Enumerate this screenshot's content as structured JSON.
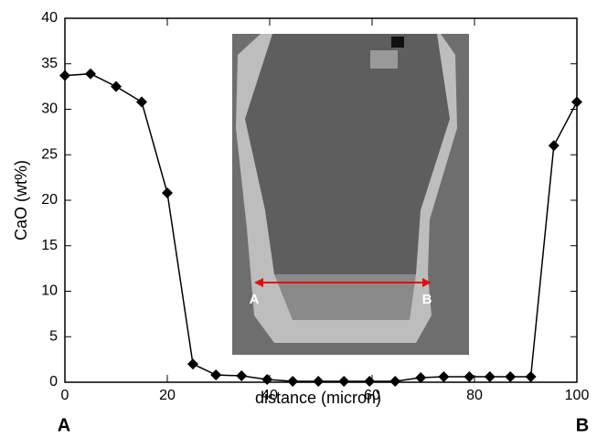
{
  "chart_data": {
    "type": "line",
    "x_label": "distance (micron)",
    "y_label": "CaO (wt%)",
    "x": [
      0,
      5,
      10,
      15,
      20,
      25,
      29.5,
      34.5,
      39.5,
      44.5,
      49.5,
      54.5,
      59.5,
      64.5,
      69.5,
      74,
      79,
      83,
      87,
      91,
      95.5,
      100
    ],
    "series": [
      {
        "color": "#000000",
        "values": [
          33.7,
          33.9,
          32.5,
          30.8,
          20.8,
          2.0,
          0.8,
          0.7,
          0.3,
          0.1,
          0.1,
          0.1,
          0.1,
          0.1,
          0.5,
          0.6,
          0.6,
          0.6,
          0.6,
          0.6,
          26.0,
          30.8
        ]
      }
    ],
    "xlim": [
      0,
      100
    ],
    "xticks": [
      0,
      20,
      40,
      60,
      80,
      100
    ],
    "ylim": [
      0,
      40
    ],
    "yticks": [
      0,
      5,
      10,
      15,
      20,
      25,
      30,
      35,
      40
    ],
    "endpoint_labels": [
      "A",
      "B"
    ],
    "inset_labels": [
      "A",
      "B"
    ]
  }
}
